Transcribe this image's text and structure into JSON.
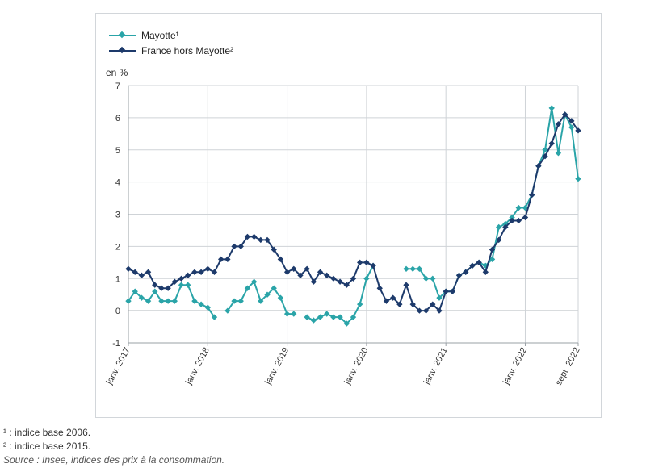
{
  "unit_label": "en %",
  "notes": {
    "note1": "¹ : indice base 2006.",
    "note2": "² : indice base 2015.",
    "source": "Source : Insee, indices des prix à la consommation."
  },
  "chart_data": {
    "type": "line",
    "title": "",
    "xlabel": "",
    "ylabel": "en %",
    "ylim": [
      -1,
      7
    ],
    "yticks": [
      -1,
      0,
      1,
      2,
      3,
      4,
      5,
      6,
      7
    ],
    "x_ticks": [
      {
        "label": "janv. 2017",
        "month_index": 0
      },
      {
        "label": "janv. 2018",
        "month_index": 12
      },
      {
        "label": "janv. 2019",
        "month_index": 24
      },
      {
        "label": "janv. 2020",
        "month_index": 36
      },
      {
        "label": "janv. 2021",
        "month_index": 48
      },
      {
        "label": "janv. 2022",
        "month_index": 60
      },
      {
        "label": "sept. 2022",
        "month_index": 68
      }
    ],
    "grid": true,
    "legend_position": "top-left",
    "series": [
      {
        "name": "Mayotte¹",
        "color": "#2aa4a8",
        "values": [
          0.3,
          0.6,
          0.4,
          0.3,
          0.6,
          0.3,
          0.3,
          0.3,
          0.8,
          0.8,
          0.3,
          0.2,
          0.1,
          -0.2,
          null,
          0.0,
          0.3,
          0.3,
          0.7,
          0.9,
          0.3,
          0.5,
          0.7,
          0.4,
          -0.1,
          -0.1,
          null,
          -0.2,
          -0.3,
          -0.2,
          -0.1,
          -0.2,
          -0.2,
          -0.4,
          -0.2,
          0.2,
          1.0,
          1.4,
          null,
          null,
          null,
          null,
          1.3,
          1.3,
          1.3,
          1.0,
          1.0,
          0.4,
          0.6,
          0.6,
          1.1,
          1.2,
          1.4,
          1.5,
          1.4,
          1.6,
          2.6,
          2.7,
          2.9,
          3.2,
          3.2,
          3.6,
          4.5,
          5.0,
          6.3,
          4.9,
          6.1,
          5.7,
          4.1
        ]
      },
      {
        "name": "France hors Mayotte²",
        "color": "#1d3a6b",
        "values": [
          1.3,
          1.2,
          1.1,
          1.2,
          0.8,
          0.7,
          0.7,
          0.9,
          1.0,
          1.1,
          1.2,
          1.2,
          1.3,
          1.2,
          1.6,
          1.6,
          2.0,
          2.0,
          2.3,
          2.3,
          2.2,
          2.2,
          1.9,
          1.6,
          1.2,
          1.3,
          1.1,
          1.3,
          0.9,
          1.2,
          1.1,
          1.0,
          0.9,
          0.8,
          1.0,
          1.5,
          1.5,
          1.4,
          0.7,
          0.3,
          0.4,
          0.2,
          0.8,
          0.2,
          0.0,
          0.0,
          0.2,
          0.0,
          0.6,
          0.6,
          1.1,
          1.2,
          1.4,
          1.5,
          1.2,
          1.9,
          2.2,
          2.6,
          2.8,
          2.8,
          2.9,
          3.6,
          4.5,
          4.8,
          5.2,
          5.8,
          6.1,
          5.9,
          5.6
        ]
      }
    ]
  }
}
